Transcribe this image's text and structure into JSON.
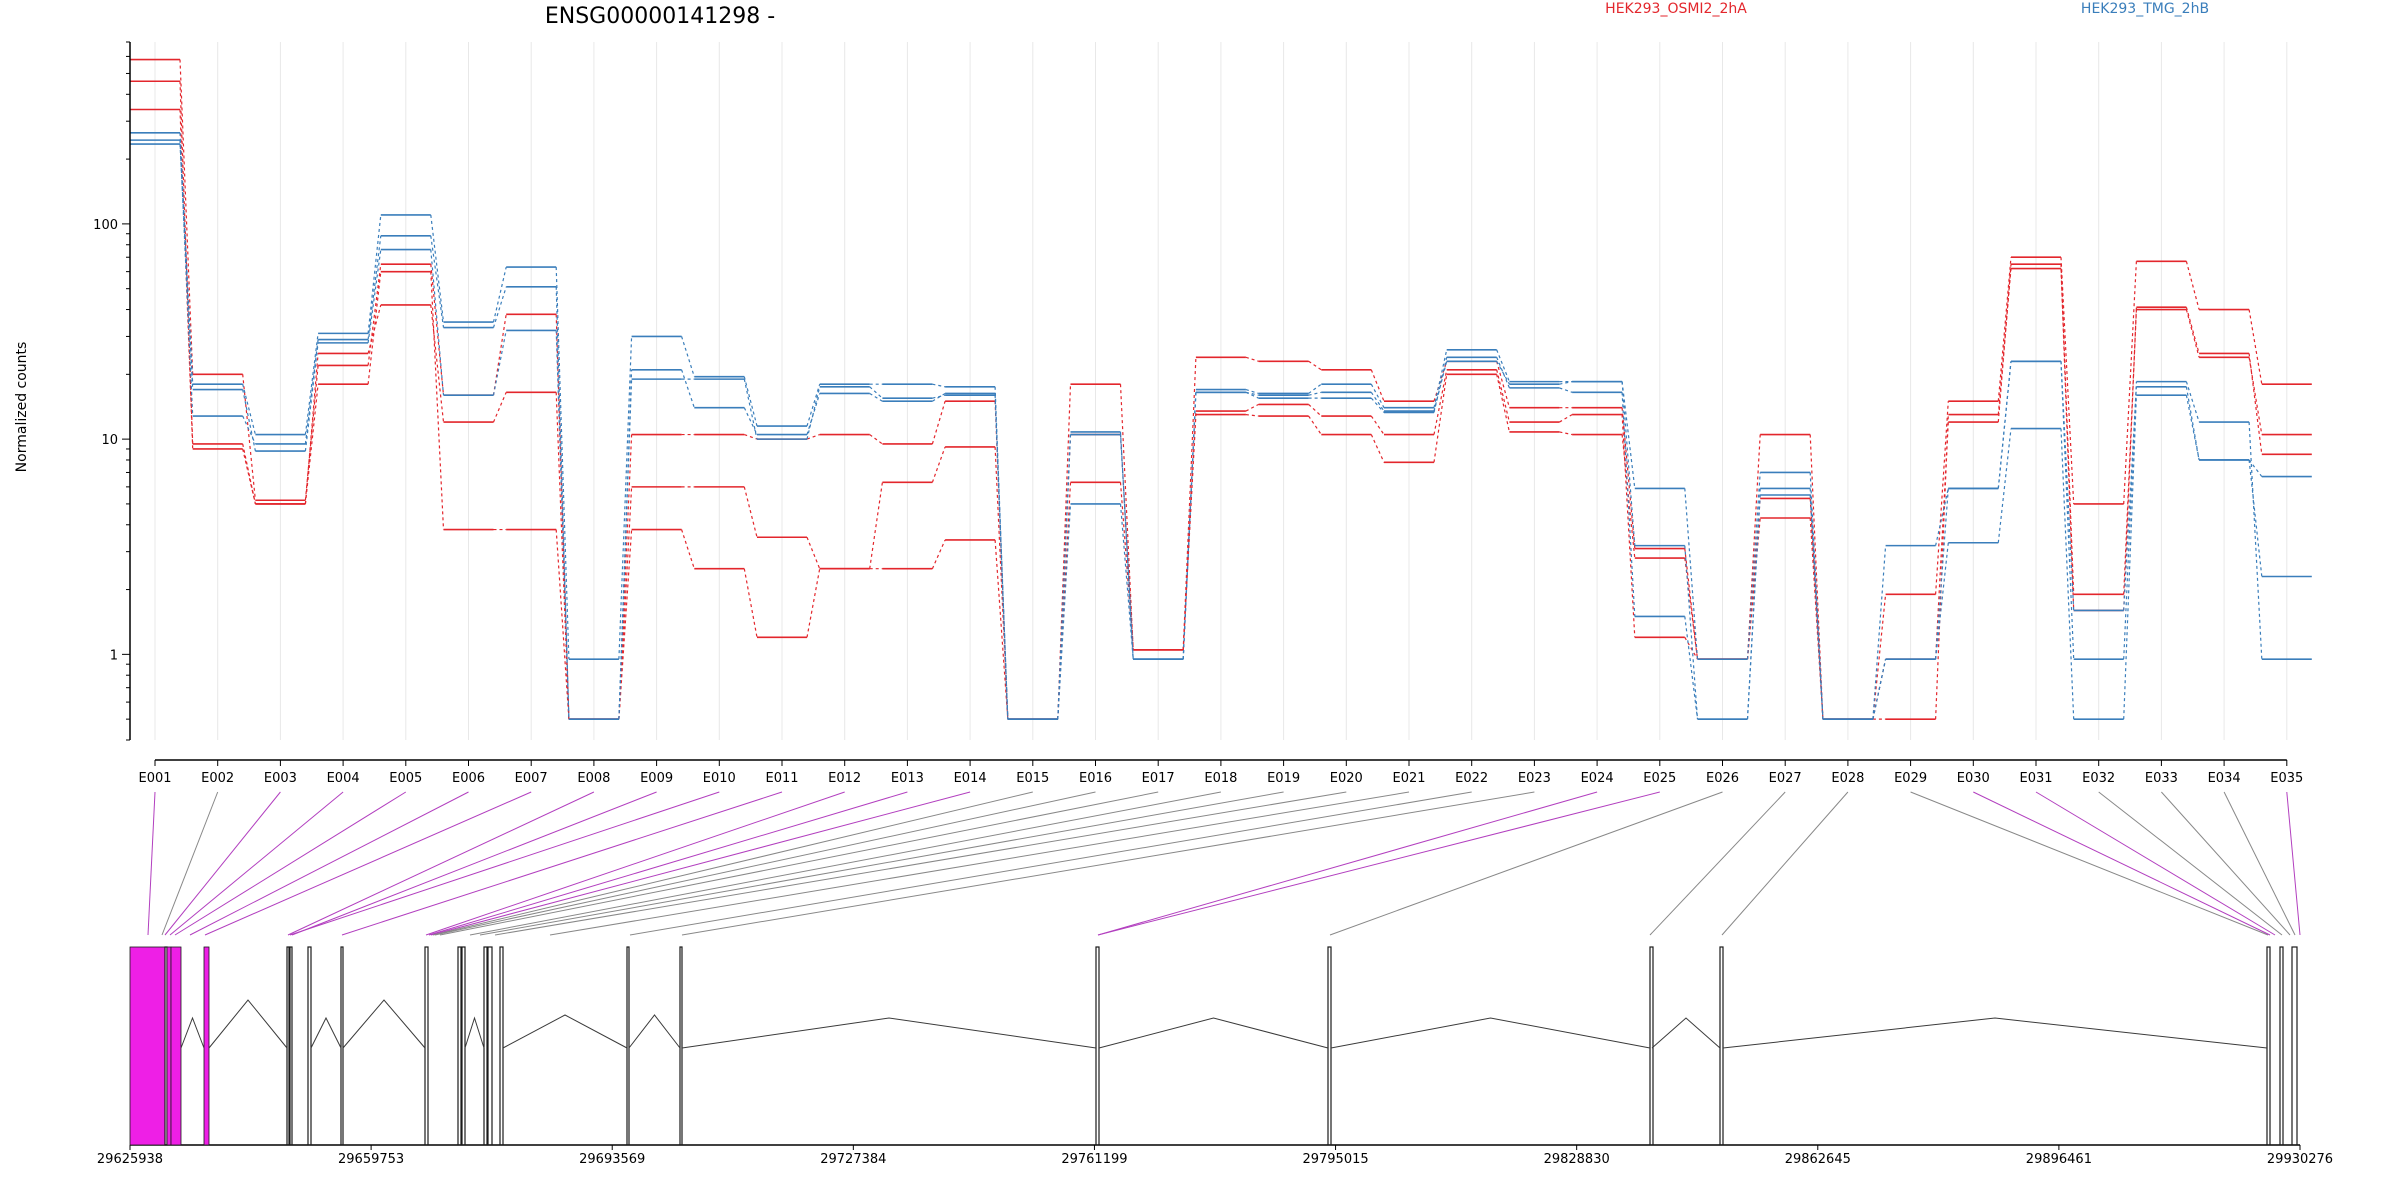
{
  "figure": {
    "title": "ENSG00000141298 -",
    "ylabel": "Normalized counts",
    "legend": [
      {
        "label": "HEK293_OSMI2_2hA",
        "color": "#e3262c"
      },
      {
        "label": "HEK293_TMG_2hB",
        "color": "#3a7ebb"
      }
    ]
  },
  "chart_data": {
    "type": "line",
    "title": "ENSG00000141298 -",
    "ylabel": "Normalized counts",
    "yscale": "log",
    "ylim": [
      0.4,
      700
    ],
    "yticks": [
      1,
      10,
      100
    ],
    "ytick_labels": [
      "1",
      "10",
      "100"
    ],
    "grid": "vertical",
    "legend_placement": "top",
    "categories": [
      "E001",
      "E002",
      "E003",
      "E004",
      "E005",
      "E006",
      "E007",
      "E008",
      "E009",
      "E010",
      "E011",
      "E012",
      "E013",
      "E014",
      "E015",
      "E016",
      "E017",
      "E018",
      "E019",
      "E020",
      "E021",
      "E022",
      "E023",
      "E024",
      "E025",
      "E026",
      "E027",
      "E028",
      "E029",
      "E030",
      "E031",
      "E032",
      "E033",
      "E034",
      "E035"
    ],
    "series": [
      {
        "group": "HEK293_OSMI2_2hA",
        "color": "#e3262c",
        "values": [
          580,
          20,
          5.2,
          22,
          65,
          16,
          38,
          0.5,
          10.5,
          10.5,
          10,
          10.5,
          9.5,
          15,
          0.5,
          18,
          1.05,
          24,
          23,
          21,
          15,
          23,
          14,
          14,
          3.1,
          0.95,
          10.5,
          0.5,
          1.9,
          15,
          70,
          5,
          67,
          40,
          18
        ]
      },
      {
        "group": "HEK293_OSMI2_2hA",
        "color": "#e3262c",
        "values": [
          460,
          9.5,
          5,
          25,
          42,
          12,
          16.5,
          0.5,
          6,
          6,
          3.5,
          2.5,
          6.3,
          9.2,
          0.5,
          6.3,
          1.05,
          13,
          12.8,
          10.5,
          7.8,
          20,
          10.8,
          10.5,
          2.8,
          0.95,
          5.3,
          0.5,
          0.95,
          12,
          65,
          1.9,
          40,
          24,
          10.5
        ]
      },
      {
        "group": "HEK293_OSMI2_2hA",
        "color": "#e3262c",
        "values": [
          340,
          9,
          5,
          18,
          60,
          3.8,
          3.8,
          0.5,
          3.8,
          2.5,
          1.2,
          2.5,
          2.5,
          3.4,
          0.5,
          10.5,
          1.05,
          13.5,
          14.5,
          12.8,
          10.5,
          21,
          12,
          13,
          1.2,
          0.95,
          4.3,
          0.5,
          0.5,
          13,
          62,
          1.6,
          41,
          25,
          8.5
        ]
      },
      {
        "group": "HEK293_TMG_2hB",
        "color": "#3a7ebb",
        "values": [
          265,
          18,
          10.5,
          31,
          110,
          35,
          63,
          0.95,
          30,
          19.5,
          11.5,
          18,
          18,
          17.5,
          0.5,
          10.5,
          0.95,
          17,
          16.3,
          18,
          14,
          26,
          18.5,
          18.5,
          5.9,
          0.95,
          7,
          0.5,
          3.2,
          5.9,
          23,
          0.95,
          18.5,
          12,
          0.95
        ]
      },
      {
        "group": "HEK293_TMG_2hB",
        "color": "#3a7ebb",
        "values": [
          245,
          12.8,
          9.5,
          29,
          88,
          33,
          51,
          0.5,
          21,
          14,
          10.5,
          16.3,
          15,
          16.3,
          0.5,
          10.8,
          0.95,
          16.5,
          15.5,
          15.5,
          13.3,
          24,
          17.3,
          16.5,
          1.5,
          0.5,
          5.9,
          0.5,
          0.95,
          3.3,
          11.2,
          0.5,
          16,
          8,
          6.7
        ]
      },
      {
        "group": "HEK293_TMG_2hB",
        "color": "#3a7ebb",
        "values": [
          235,
          17,
          8.8,
          28,
          76,
          16,
          32,
          0.5,
          19,
          19,
          10,
          17.5,
          15.5,
          16,
          0.5,
          5,
          0.95,
          16.5,
          16,
          16.5,
          13.5,
          23,
          18,
          18.5,
          3.2,
          0.5,
          5.5,
          0.5,
          0.95,
          5.9,
          23,
          1.6,
          17.5,
          8,
          2.3
        ]
      }
    ]
  },
  "gene_model": {
    "coordinates": [
      "29625938",
      "29659753",
      "29693569",
      "29727384",
      "29761199",
      "29795015",
      "29828830",
      "29862645",
      "29896461",
      "29930276"
    ],
    "exon_fill": "#ee1fe6",
    "line_color": "#3a3a3a",
    "connector_magenta": "#b23fbf",
    "connector_gray": "#888888"
  }
}
